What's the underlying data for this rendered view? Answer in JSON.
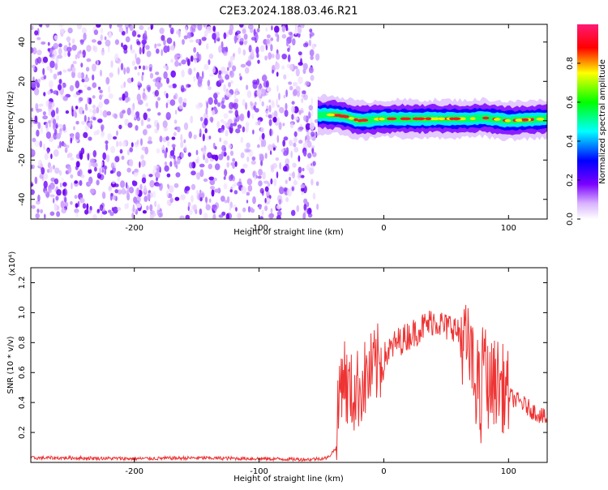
{
  "title": "C2E3.2024.188.03.46.R21",
  "chart_data": [
    {
      "type": "heatmap",
      "xlabel": "Height of straight line (km)",
      "ylabel": "Frequency (Hz)",
      "xlim": [
        -283,
        131
      ],
      "ylim": [
        -50,
        49
      ],
      "x_ticks": [
        -200,
        -100,
        0,
        100
      ],
      "x_tick_labels": [
        "-200",
        "-100",
        "0",
        "100"
      ],
      "y_ticks": [
        -40,
        -20,
        0,
        20,
        40
      ],
      "y_tick_labels": [
        "-40",
        "-20",
        "0",
        "20",
        "40"
      ],
      "noise_region_x": [
        -283,
        -53
      ],
      "signal_band": {
        "x_start": -53,
        "x_end": 131,
        "center_frequency": [
          {
            "x": -53,
            "y": 3
          },
          {
            "x": -40,
            "y": 3
          },
          {
            "x": -30,
            "y": 2
          },
          {
            "x": -20,
            "y": 0
          },
          {
            "x": 0,
            "y": 1
          },
          {
            "x": 40,
            "y": 1
          },
          {
            "x": 70,
            "y": 1
          },
          {
            "x": 80,
            "y": 1.5
          },
          {
            "x": 100,
            "y": 0
          },
          {
            "x": 131,
            "y": 1
          }
        ],
        "bandwidth_hz": 6
      },
      "colorbar": {
        "label": "Normalized spectral amplitude",
        "range": [
          0,
          1
        ],
        "ticks": [
          0.0,
          0.2,
          0.4,
          0.6,
          0.8
        ],
        "tick_labels": [
          "0.0",
          "0.2",
          "0.4",
          "0.6",
          "0.8"
        ],
        "colors": [
          "#ffffff",
          "#8a2be2",
          "#0000ff",
          "#00ffff",
          "#00ff00",
          "#ffff00",
          "#ff0000",
          "#ff1493"
        ]
      },
      "grid": false
    },
    {
      "type": "line",
      "xlabel": "Height of straight line (km)",
      "ylabel": "SNR (10 * v/v)",
      "y_scale_label": "(x10⁴)",
      "xlim": [
        -283,
        131
      ],
      "ylim": [
        0,
        1.3
      ],
      "x_ticks": [
        -200,
        -100,
        0,
        100
      ],
      "x_tick_labels": [
        "-200",
        "-100",
        "0",
        "100"
      ],
      "y_ticks": [
        0.2,
        0.4,
        0.6,
        0.8,
        1.0,
        1.2
      ],
      "y_tick_labels": [
        "0.2",
        "0.4",
        "0.6",
        "0.8",
        "1.0",
        "1.2"
      ],
      "color": "#ee3333",
      "grid": false,
      "series": [
        {
          "x": [
            -283,
            -250,
            -200,
            -150,
            -100,
            -60,
            -45,
            -38,
            -35,
            -32,
            -30,
            -25,
            -20,
            -15,
            -10,
            -5,
            0,
            5,
            10,
            15,
            20,
            25,
            30,
            35,
            40,
            45,
            50,
            55,
            60,
            65,
            70,
            73,
            75,
            78,
            80,
            82,
            85,
            90,
            95,
            100,
            105,
            110,
            115,
            120,
            125,
            131
          ],
          "y": [
            0.03,
            0.03,
            0.025,
            0.03,
            0.025,
            0.02,
            0.03,
            0.1,
            0.55,
            0.62,
            0.5,
            0.45,
            0.5,
            0.55,
            0.6,
            0.65,
            0.7,
            0.75,
            0.8,
            0.82,
            0.85,
            0.87,
            0.9,
            0.92,
            0.95,
            0.93,
            0.9,
            0.92,
            0.85,
            0.8,
            0.7,
            0.5,
            0.6,
            0.3,
            0.85,
            0.55,
            0.5,
            0.55,
            0.5,
            0.45,
            0.42,
            0.4,
            0.37,
            0.34,
            0.32,
            0.28
          ]
        }
      ]
    }
  ]
}
